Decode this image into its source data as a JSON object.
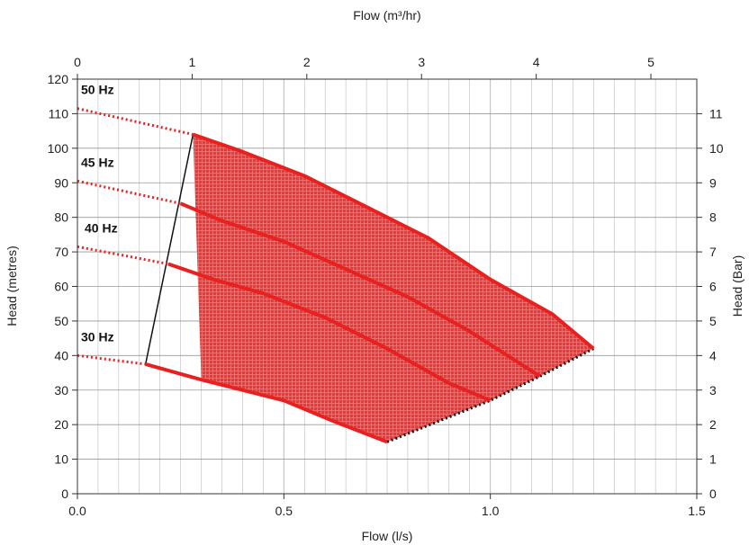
{
  "chart_data": {
    "type": "line",
    "title": "",
    "xlabel": "Flow (l/s)",
    "x2label": "Flow (m³/hr)",
    "ylabel": "Head (metres)",
    "y2label": "Head (Bar)",
    "xlim": [
      0,
      1.5
    ],
    "x2lim": [
      0,
      5.4
    ],
    "ylim": [
      0,
      120
    ],
    "y2lim": [
      0,
      12
    ],
    "x_ticks": [
      "0.0",
      "0.5",
      "1.0",
      "1.5"
    ],
    "x_tick_values": [
      0,
      0.5,
      1.0,
      1.5
    ],
    "x2_ticks": [
      "0",
      "1",
      "2",
      "3",
      "4",
      "5"
    ],
    "x2_tick_values": [
      0,
      1,
      2,
      3,
      4,
      5
    ],
    "y_ticks": [
      "0",
      "10",
      "20",
      "30",
      "40",
      "50",
      "60",
      "70",
      "80",
      "90",
      "100",
      "110",
      "120"
    ],
    "y_tick_values": [
      0,
      10,
      20,
      30,
      40,
      50,
      60,
      70,
      80,
      90,
      100,
      110,
      120
    ],
    "y2_ticks": [
      "0",
      "1",
      "2",
      "3",
      "4",
      "5",
      "6",
      "7",
      "8",
      "9",
      "10",
      "11"
    ],
    "y2_tick_values": [
      0,
      1,
      2,
      3,
      4,
      5,
      6,
      7,
      8,
      9,
      10,
      11
    ],
    "grid": true,
    "colors": {
      "curve": "#e82020",
      "area": "#e83a3a",
      "boundary": "#111111",
      "grid": "#bbbbbb"
    },
    "series": [
      {
        "name": "50 Hz",
        "extrapolated": [
          [
            0,
            111.5
          ],
          [
            0.28,
            104
          ]
        ],
        "values": [
          [
            0.28,
            104
          ],
          [
            0.4,
            99
          ],
          [
            0.55,
            92
          ],
          [
            0.7,
            83
          ],
          [
            0.85,
            74
          ],
          [
            1.0,
            62
          ],
          [
            1.15,
            52
          ],
          [
            1.25,
            42
          ]
        ]
      },
      {
        "name": "45 Hz",
        "extrapolated": [
          [
            0,
            90.5
          ],
          [
            0.25,
            84
          ]
        ],
        "values": [
          [
            0.25,
            84
          ],
          [
            0.35,
            79
          ],
          [
            0.5,
            73
          ],
          [
            0.65,
            65
          ],
          [
            0.8,
            57
          ],
          [
            0.95,
            47
          ],
          [
            1.12,
            34
          ]
        ]
      },
      {
        "name": "40 Hz",
        "extrapolated": [
          [
            0,
            71.5
          ],
          [
            0.22,
            66.5
          ]
        ],
        "values": [
          [
            0.22,
            66.5
          ],
          [
            0.33,
            62
          ],
          [
            0.45,
            58
          ],
          [
            0.6,
            51
          ],
          [
            0.75,
            42
          ],
          [
            0.9,
            32
          ],
          [
            1.0,
            27
          ]
        ]
      },
      {
        "name": "30 Hz",
        "extrapolated": [
          [
            0,
            40
          ],
          [
            0.165,
            37.5
          ]
        ],
        "values": [
          [
            0.165,
            37.5
          ],
          [
            0.3,
            33
          ],
          [
            0.5,
            27
          ],
          [
            0.62,
            21
          ],
          [
            0.75,
            15
          ]
        ]
      }
    ],
    "min_flow_line": [
      [
        0.165,
        37.5
      ],
      [
        0.28,
        104
      ]
    ],
    "max_flow_line": [
      [
        0.75,
        15
      ],
      [
        1.0,
        27
      ],
      [
        1.12,
        34
      ],
      [
        1.25,
        42
      ]
    ]
  }
}
